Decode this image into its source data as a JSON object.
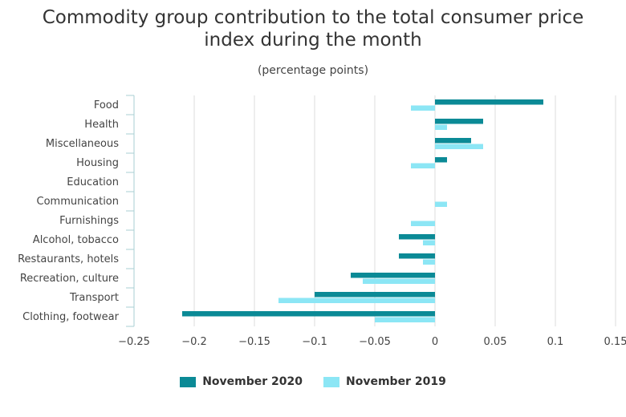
{
  "colors": {
    "nov2020": "#0b8a96",
    "nov2019": "#8ce6f5",
    "grid": "#dcdcdc",
    "axis": "#a8cfd3"
  },
  "chart_data": {
    "type": "bar",
    "orientation": "horizontal",
    "title": "Commodity group contribution to the total consumer price index during the month",
    "subtitle": "(percentage points)",
    "categories": [
      "Food",
      "Health",
      "Miscellaneous",
      "Housing",
      "Education",
      "Communication",
      "Furnishings",
      "Alcohol, tobacco",
      "Restaurants, hotels",
      "Recreation, culture",
      "Transport",
      "Clothing, footwear"
    ],
    "series": [
      {
        "name": "November 2020",
        "values": [
          0.09,
          0.04,
          0.03,
          0.01,
          0,
          0,
          0,
          -0.03,
          -0.03,
          -0.07,
          -0.1,
          -0.21
        ]
      },
      {
        "name": "November 2019",
        "values": [
          -0.02,
          0.01,
          0.04,
          -0.02,
          0,
          0.01,
          -0.02,
          -0.01,
          -0.01,
          -0.06,
          -0.13,
          -0.05
        ]
      }
    ],
    "xlim": [
      -0.25,
      0.15
    ],
    "x_ticks": [
      "−0.25",
      "−0.2",
      "−0.15",
      "−0.1",
      "−0.05",
      "0",
      "0.05",
      "0.1",
      "0.15"
    ],
    "x_tick_values": [
      -0.25,
      -0.2,
      -0.15,
      -0.1,
      -0.05,
      0,
      0.05,
      0.1,
      0.15
    ],
    "grid": true,
    "legend": "bottom"
  }
}
